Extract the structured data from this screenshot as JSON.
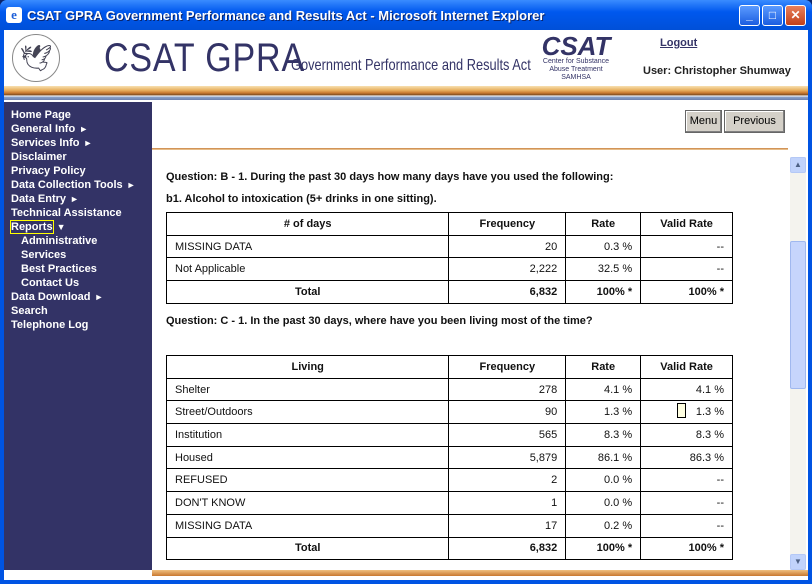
{
  "window": {
    "title": "CSAT GPRA Government Performance and Results Act - Microsoft Internet Explorer"
  },
  "header": {
    "logo": "CSAT GPRA",
    "subtitle": "Government Performance and Results Act",
    "csat": "CSAT",
    "csat_lines": [
      "Center for Substance",
      "Abuse Treatment",
      "SAMHSA"
    ],
    "logout": "Logout",
    "user": "User: Christopher Shumway"
  },
  "sidebar": {
    "items": [
      {
        "label": "Home Page"
      },
      {
        "label": "General Info",
        "arrow": "►"
      },
      {
        "label": "Services Info",
        "arrow": "►"
      },
      {
        "label": "Disclaimer"
      },
      {
        "label": "Privacy Policy"
      },
      {
        "label": "Data Collection Tools",
        "arrow": "►"
      },
      {
        "label": "Data Entry",
        "arrow": "►"
      },
      {
        "label": "Technical Assistance"
      },
      {
        "label": "Reports",
        "arrow": "▼",
        "selected": true
      },
      {
        "label": "Administrative",
        "sub": true
      },
      {
        "label": "Services",
        "sub": true
      },
      {
        "label": "Best Practices",
        "sub": true
      },
      {
        "label": "Contact Us",
        "sub": true
      },
      {
        "label": "Data Download",
        "arrow": "►"
      },
      {
        "label": "Search"
      },
      {
        "label": "Telephone Log"
      }
    ]
  },
  "toolbar": {
    "menu": "Menu",
    "previous": "Previous"
  },
  "q1": {
    "question": "Question: B - 1. During the past 30 days how many days have you used the following:",
    "sub": "b1. Alcohol to intoxication (5+ drinks in one sitting).",
    "headers": [
      "# of days",
      "Frequency",
      "Rate",
      "Valid Rate"
    ],
    "rows": [
      [
        "MISSING DATA",
        "20",
        "0.3 %",
        "--"
      ],
      [
        "Not Applicable",
        "2,222",
        "32.5 %",
        "--"
      ]
    ],
    "total": [
      "Total",
      "6,832",
      "100% *",
      "100% *"
    ]
  },
  "q2": {
    "question": "Question: C - 1. In the past 30 days, where have you been living most of the time?",
    "headers": [
      "Living",
      "Frequency",
      "Rate",
      "Valid Rate"
    ],
    "rows": [
      [
        "Shelter",
        "278",
        "4.1 %",
        "4.1 %"
      ],
      [
        "Street/Outdoors",
        "90",
        "1.3 %",
        "1.3 %"
      ],
      [
        "Institution",
        "565",
        "8.3 %",
        "8.3 %"
      ],
      [
        "Housed",
        "5,879",
        "86.1 %",
        "86.3 %"
      ],
      [
        "REFUSED",
        "2",
        "0.0 %",
        "--"
      ],
      [
        "DON'T KNOW",
        "1",
        "0.0 %",
        "--"
      ],
      [
        "MISSING DATA",
        "17",
        "0.2 %",
        "--"
      ]
    ],
    "total": [
      "Total",
      "6,832",
      "100% *",
      "100% *"
    ]
  }
}
